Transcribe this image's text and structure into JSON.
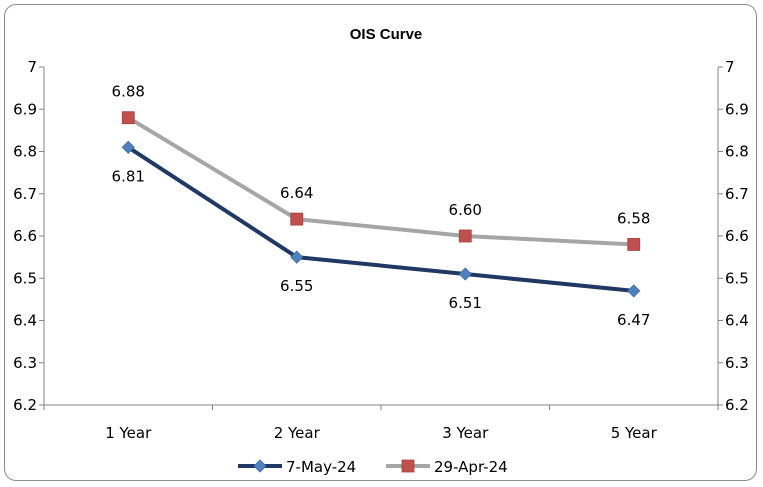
{
  "chart_data": {
    "type": "line",
    "title": "OIS Curve",
    "categories": [
      "1 Year",
      "2 Year",
      "3 Year",
      "5 Year"
    ],
    "ylim": [
      6.2,
      7
    ],
    "yticks": [
      "6.2",
      "6.3",
      "6.4",
      "6.5",
      "6.6",
      "6.7",
      "6.8",
      "6.9",
      "7"
    ],
    "secondary_axis": true,
    "grid": false,
    "legend": "bottom",
    "series": [
      {
        "name": "7-May-24",
        "values": [
          6.81,
          6.55,
          6.51,
          6.47
        ],
        "labels": [
          "6.81",
          "6.55",
          "6.51",
          "6.47"
        ],
        "label_position": "below",
        "color": "#1f3864",
        "marker_color": "#4f81bd",
        "marker": "diamond"
      },
      {
        "name": "29-Apr-24",
        "values": [
          6.88,
          6.64,
          6.6,
          6.58
        ],
        "labels": [
          "6.88",
          "6.64",
          "6.60",
          "6.58"
        ],
        "label_position": "above",
        "color": "#a6a6a6",
        "marker_color": "#c0504d",
        "marker": "square"
      }
    ]
  }
}
